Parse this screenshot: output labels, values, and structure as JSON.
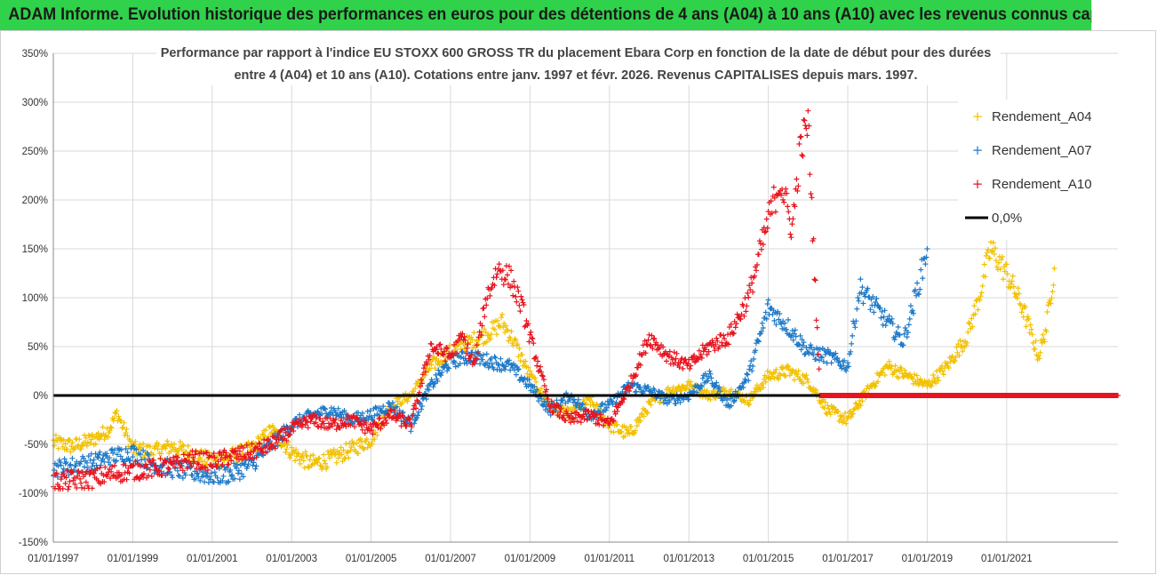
{
  "banner": {
    "text": "ADAM Informe. Evolution historique des performances en euros pour des détentions de 4 ans (A04) à 10 ans (A10) avec les revenus connus capitalisés"
  },
  "colors": {
    "banner_bg": "#2fd24a",
    "a04": "#f2c100",
    "a07": "#1f7ac8",
    "a10": "#e8141e",
    "zero": "#000000",
    "grid": "#d9d9d9"
  },
  "chart_data": {
    "type": "scatter",
    "title_lines": [
      "Performance par rapport à l'indice EU STOXX 600 GROSS TR  du placement Ebara Corp en fonction de la date de début pour des durées",
      "entre 4 (A04) et 10 ans (A10). Cotations entre janv. 1997 et févr. 2026. Revenus CAPITALISES depuis mars. 1997."
    ],
    "xlabel": "",
    "ylabel": "",
    "ylim": [
      -150,
      350
    ],
    "xlim": [
      1997.0,
      2023.8
    ],
    "y_ticks": [
      -150,
      -100,
      -50,
      0,
      50,
      100,
      150,
      200,
      250,
      300,
      350
    ],
    "y_tick_labels": [
      "-150%",
      "-100%",
      "-50%",
      "0%",
      "50%",
      "100%",
      "150%",
      "200%",
      "250%",
      "300%",
      "350%"
    ],
    "x_ticks": [
      1997,
      1999,
      2001,
      2003,
      2005,
      2007,
      2009,
      2011,
      2013,
      2015,
      2017,
      2019,
      2021
    ],
    "x_tick_labels": [
      "01/01/1997",
      "01/01/1999",
      "01/01/2001",
      "01/01/2003",
      "01/01/2005",
      "01/01/2007",
      "01/01/2009",
      "01/01/2011",
      "01/01/2013",
      "01/01/2015",
      "01/01/2017",
      "01/01/2019",
      "01/01/2021"
    ],
    "legend_position": "right",
    "series": [
      {
        "name": "Rendement_A04",
        "color": "#f2c100",
        "x": [
          1997.0,
          1997.5,
          1998.0,
          1998.4,
          1998.6,
          1999.0,
          1999.5,
          2000.0,
          2000.5,
          2001.0,
          2001.5,
          2002.0,
          2002.5,
          2003.0,
          2003.5,
          2004.0,
          2004.5,
          2005.0,
          2005.5,
          2006.0,
          2006.5,
          2007.0,
          2007.5,
          2008.0,
          2008.3,
          2008.6,
          2009.0,
          2009.5,
          2010.0,
          2010.5,
          2011.0,
          2011.5,
          2012.0,
          2012.5,
          2013.0,
          2013.5,
          2014.0,
          2014.5,
          2015.0,
          2015.5,
          2016.0,
          2016.5,
          2017.0,
          2017.5,
          2018.0,
          2018.5,
          2019.0,
          2019.5,
          2020.0,
          2020.3,
          2020.6,
          2021.0,
          2021.4,
          2021.8,
          2022.0,
          2022.2
        ],
        "values": [
          -48,
          -52,
          -45,
          -35,
          -18,
          -55,
          -58,
          -52,
          -60,
          -68,
          -62,
          -55,
          -35,
          -58,
          -70,
          -65,
          -55,
          -45,
          -10,
          0,
          30,
          45,
          55,
          65,
          75,
          55,
          20,
          -10,
          -20,
          -5,
          -30,
          -40,
          -10,
          5,
          10,
          0,
          5,
          -5,
          20,
          25,
          15,
          -15,
          -25,
          5,
          30,
          20,
          10,
          30,
          60,
          100,
          150,
          125,
          90,
          40,
          70,
          130
        ]
      },
      {
        "name": "Rendement_A07",
        "color": "#1f7ac8",
        "x": [
          1997.0,
          1997.5,
          1998.0,
          1998.5,
          1999.0,
          1999.5,
          2000.0,
          2000.5,
          2001.0,
          2001.5,
          2002.0,
          2002.5,
          2003.0,
          2003.5,
          2004.0,
          2004.5,
          2005.0,
          2005.5,
          2006.0,
          2006.5,
          2007.0,
          2007.5,
          2008.0,
          2008.5,
          2009.0,
          2009.5,
          2010.0,
          2010.5,
          2011.0,
          2011.5,
          2012.0,
          2012.5,
          2013.0,
          2013.5,
          2014.0,
          2014.5,
          2015.0,
          2015.5,
          2016.0,
          2016.5,
          2017.0,
          2017.3,
          2017.7,
          2018.0,
          2018.4,
          2018.7,
          2019.0
        ],
        "values": [
          -75,
          -72,
          -68,
          -62,
          -58,
          -70,
          -75,
          -78,
          -82,
          -80,
          -70,
          -50,
          -30,
          -20,
          -15,
          -25,
          -20,
          -10,
          -30,
          10,
          35,
          40,
          35,
          30,
          10,
          -15,
          0,
          -20,
          -10,
          10,
          5,
          -5,
          0,
          20,
          -10,
          20,
          90,
          70,
          45,
          40,
          30,
          110,
          90,
          75,
          55,
          100,
          150
        ]
      },
      {
        "name": "Rendement_A10",
        "color": "#e8141e",
        "x": [
          1997.0,
          1997.5,
          1998.0,
          1998.5,
          1999.0,
          1999.5,
          2000.0,
          2000.5,
          2001.0,
          2001.5,
          2002.0,
          2002.5,
          2003.0,
          2003.5,
          2004.0,
          2004.5,
          2005.0,
          2005.5,
          2006.0,
          2006.5,
          2007.0,
          2007.3,
          2007.6,
          2007.9,
          2008.2,
          2008.5,
          2008.8,
          2009.0,
          2009.5,
          2010.0,
          2010.5,
          2011.0,
          2011.5,
          2012.0,
          2012.5,
          2013.0,
          2013.5,
          2014.0,
          2014.5,
          2015.0,
          2015.3,
          2015.6,
          2015.8,
          2016.0,
          2016.3,
          2017.0,
          2018.0,
          2019.0,
          2020.0,
          2021.0,
          2022.0,
          2023.0,
          2023.8
        ],
        "values": [
          -88,
          -87,
          -85,
          -80,
          -77,
          -75,
          -72,
          -65,
          -68,
          -62,
          -58,
          -50,
          -35,
          -25,
          -30,
          -25,
          -35,
          -20,
          -30,
          50,
          40,
          60,
          30,
          100,
          130,
          120,
          90,
          60,
          -10,
          -25,
          -20,
          -30,
          10,
          60,
          40,
          30,
          50,
          60,
          100,
          180,
          220,
          170,
          250,
          280,
          0,
          0,
          0,
          0,
          0,
          0,
          0,
          0,
          0
        ]
      }
    ],
    "reference_line": {
      "name": "0,0%",
      "value": 0,
      "x_range": [
        1997.0,
        2016.3
      ]
    }
  }
}
